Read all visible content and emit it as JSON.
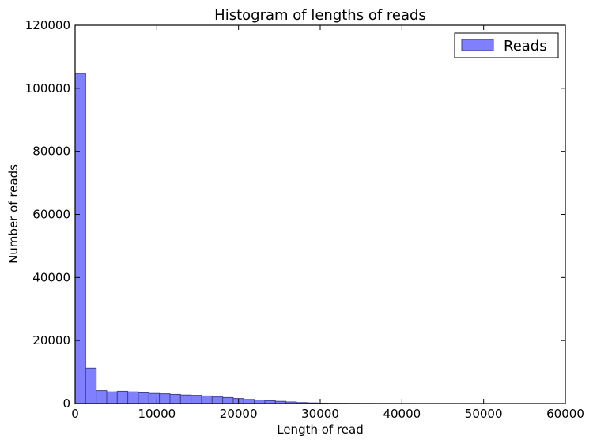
{
  "chart_data": {
    "type": "bar",
    "title": "Histogram of lengths of reads",
    "xlabel": "Length of read",
    "ylabel": "Number of reads",
    "xlim": [
      0,
      60000
    ],
    "ylim": [
      0,
      120000
    ],
    "x_ticks": [
      0,
      10000,
      20000,
      30000,
      40000,
      50000,
      60000
    ],
    "y_ticks": [
      0,
      20000,
      40000,
      60000,
      80000,
      100000,
      120000
    ],
    "x_tick_labels": [
      "0",
      "10000",
      "20000",
      "30000",
      "40000",
      "50000",
      "60000"
    ],
    "y_tick_labels": [
      "0",
      "20000",
      "40000",
      "60000",
      "80000",
      "100000",
      "120000"
    ],
    "bin_width": 1290,
    "bin_starts": [
      0,
      1290,
      2580,
      3870,
      5160,
      6450,
      7740,
      9030,
      10320,
      11610,
      12900,
      14190,
      15480,
      16770,
      18060,
      19350,
      20640,
      21930,
      23220,
      24510,
      25800,
      27090,
      28380,
      29670,
      30960,
      32250,
      33540,
      34830,
      36120,
      37410,
      38700,
      39990,
      41280,
      42570,
      43860,
      45150,
      46440,
      47730,
      49020,
      50310,
      51600,
      52890,
      54180,
      55470,
      56760
    ],
    "values": [
      104700,
      11200,
      4100,
      3700,
      3900,
      3700,
      3400,
      3200,
      3100,
      2900,
      2700,
      2600,
      2400,
      2100,
      1900,
      1600,
      1300,
      1100,
      900,
      700,
      500,
      300,
      200,
      120,
      90,
      70,
      50,
      40,
      30,
      25,
      20,
      15,
      12,
      10,
      8,
      6,
      5,
      4,
      3,
      3,
      2,
      2,
      1,
      1,
      1
    ],
    "legend": {
      "entries": [
        "Reads"
      ],
      "placement": "top-right"
    },
    "grid": false,
    "series_color": "#8080ff"
  }
}
